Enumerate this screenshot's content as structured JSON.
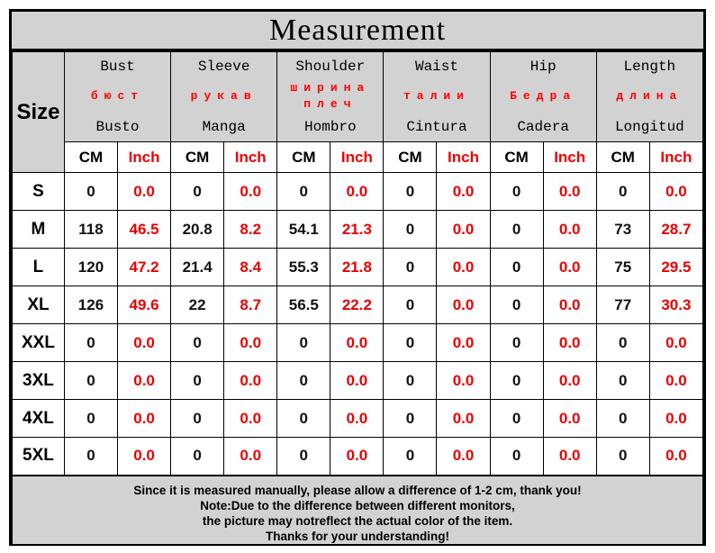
{
  "chart_data": {
    "type": "table",
    "title": "Measurement",
    "size_column_header": "Size",
    "unit_cm": "CM",
    "unit_inch": "Inch",
    "measure_columns": [
      {
        "en": "Bust",
        "ru": "бюст",
        "es": "Busto"
      },
      {
        "en": "Sleeve",
        "ru": "рукав",
        "es": "Manga"
      },
      {
        "en": "Shoulder",
        "ru": "ширина плеч",
        "es": "Hombro"
      },
      {
        "en": "Waist",
        "ru": "талии",
        "es": "Cintura"
      },
      {
        "en": "Hip",
        "ru": "Бедра",
        "es": "Cadera"
      },
      {
        "en": "Length",
        "ru": "длина",
        "es": "Longitud"
      }
    ],
    "rows": [
      {
        "size": "S",
        "values": [
          "0",
          "0.0",
          "0",
          "0.0",
          "0",
          "0.0",
          "0",
          "0.0",
          "0",
          "0.0",
          "0",
          "0.0"
        ]
      },
      {
        "size": "M",
        "values": [
          "118",
          "46.5",
          "20.8",
          "8.2",
          "54.1",
          "21.3",
          "0",
          "0.0",
          "0",
          "0.0",
          "73",
          "28.7"
        ]
      },
      {
        "size": "L",
        "values": [
          "120",
          "47.2",
          "21.4",
          "8.4",
          "55.3",
          "21.8",
          "0",
          "0.0",
          "0",
          "0.0",
          "75",
          "29.5"
        ]
      },
      {
        "size": "XL",
        "values": [
          "126",
          "49.6",
          "22",
          "8.7",
          "56.5",
          "22.2",
          "0",
          "0.0",
          "0",
          "0.0",
          "77",
          "30.3"
        ]
      },
      {
        "size": "XXL",
        "values": [
          "0",
          "0.0",
          "0",
          "0.0",
          "0",
          "0.0",
          "0",
          "0.0",
          "0",
          "0.0",
          "0",
          "0.0"
        ]
      },
      {
        "size": "3XL",
        "values": [
          "0",
          "0.0",
          "0",
          "0.0",
          "0",
          "0.0",
          "0",
          "0.0",
          "0",
          "0.0",
          "0",
          "0.0"
        ]
      },
      {
        "size": "4XL",
        "values": [
          "0",
          "0.0",
          "0",
          "0.0",
          "0",
          "0.0",
          "0",
          "0.0",
          "0",
          "0.0",
          "0",
          "0.0"
        ]
      },
      {
        "size": "5XL",
        "values": [
          "0",
          "0.0",
          "0",
          "0.0",
          "0",
          "0.0",
          "0",
          "0.0",
          "0",
          "0.0",
          "0",
          "0.0"
        ]
      }
    ],
    "notes": [
      "Since it is measured manually, please allow a difference of 1-2 cm, thank you!",
      "Note:Due to the difference between different monitors,",
      "the picture may notreflect the actual color of the item.",
      "Thanks for your understanding!"
    ],
    "colors": {
      "header_red": "#ff0000",
      "value_red": "#e80000",
      "panel_gray": "#d2d2d2",
      "border_black": "#000000"
    }
  }
}
